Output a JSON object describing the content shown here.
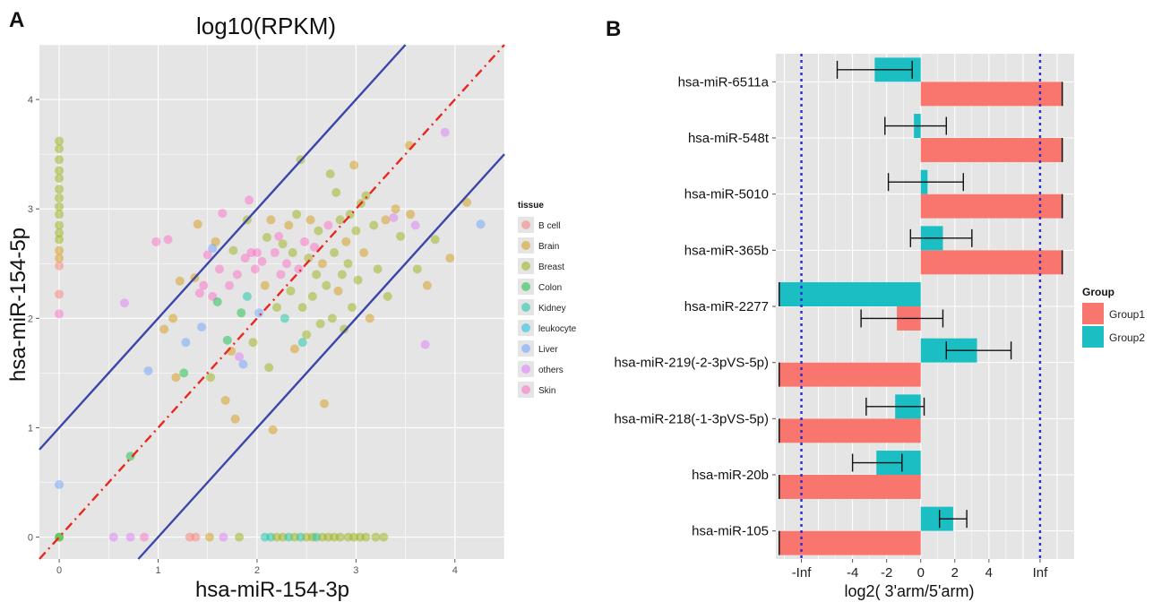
{
  "chart_data": [
    {
      "panel": "A",
      "type": "scatter",
      "title": "log10(RPKM)",
      "xlabel": "hsa-miR-154-3p",
      "ylabel": "hsa-miR-154-5p",
      "xlim": [
        -0.2,
        4.5
      ],
      "ylim": [
        -0.2,
        4.5
      ],
      "xticks": [
        "0",
        "1",
        "2",
        "3",
        "4"
      ],
      "yticks": [
        "0",
        "1",
        "2",
        "3",
        "4"
      ],
      "grid": true,
      "legend": {
        "title": "tissue",
        "placement": "right",
        "entries": [
          {
            "name": "B cell",
            "color": "#F8766D"
          },
          {
            "name": "Brain",
            "color": "#D39200"
          },
          {
            "name": "Breast",
            "color": "#93AA00"
          },
          {
            "name": "Colon",
            "color": "#00BA38"
          },
          {
            "name": "Kidney",
            "color": "#00C19F"
          },
          {
            "name": "leukocyte",
            "color": "#00B9E3"
          },
          {
            "name": "Liver",
            "color": "#619CFF"
          },
          {
            "name": "others",
            "color": "#DB72FB"
          },
          {
            "name": "Skin",
            "color": "#FF61C3"
          }
        ]
      },
      "reference_lines": [
        {
          "style": "dash-dot",
          "color": "#e8281e",
          "slope": 1,
          "intercept": 0
        },
        {
          "style": "solid",
          "color": "#3a46a8",
          "slope": 1,
          "intercept": 1
        },
        {
          "style": "solid",
          "color": "#3a46a8",
          "slope": 1,
          "intercept": -1
        }
      ],
      "points": [
        {
          "x": 0,
          "y": 3.62,
          "t": "Breast"
        },
        {
          "x": 0,
          "y": 3.55,
          "t": "Breast"
        },
        {
          "x": 0,
          "y": 3.45,
          "t": "Breast"
        },
        {
          "x": 0,
          "y": 3.35,
          "t": "Breast"
        },
        {
          "x": 0,
          "y": 3.28,
          "t": "Breast"
        },
        {
          "x": 0,
          "y": 3.18,
          "t": "Breast"
        },
        {
          "x": 0,
          "y": 3.1,
          "t": "Breast"
        },
        {
          "x": 0,
          "y": 3.02,
          "t": "Breast"
        },
        {
          "x": 0,
          "y": 2.95,
          "t": "Breast"
        },
        {
          "x": 0,
          "y": 2.85,
          "t": "Breast"
        },
        {
          "x": 0,
          "y": 2.78,
          "t": "Breast"
        },
        {
          "x": 0,
          "y": 2.72,
          "t": "Breast"
        },
        {
          "x": 0,
          "y": 2.62,
          "t": "Brain"
        },
        {
          "x": 0,
          "y": 2.55,
          "t": "Brain"
        },
        {
          "x": 0,
          "y": 2.48,
          "t": "B cell"
        },
        {
          "x": 0,
          "y": 2.22,
          "t": "B cell"
        },
        {
          "x": 0,
          "y": 2.04,
          "t": "Skin"
        },
        {
          "x": 0,
          "y": 0.48,
          "t": "Liver"
        },
        {
          "x": 0,
          "y": 0,
          "t": "Breast"
        },
        {
          "x": 0,
          "y": 0,
          "t": "Colon"
        },
        {
          "x": 0.72,
          "y": 0.74,
          "t": "Colon"
        },
        {
          "x": 0.55,
          "y": 0,
          "t": "others"
        },
        {
          "x": 0.72,
          "y": 0,
          "t": "others"
        },
        {
          "x": 0.86,
          "y": 0,
          "t": "Skin"
        },
        {
          "x": 1.32,
          "y": 0,
          "t": "B cell"
        },
        {
          "x": 1.38,
          "y": 0,
          "t": "B cell"
        },
        {
          "x": 1.52,
          "y": 0,
          "t": "Brain"
        },
        {
          "x": 1.66,
          "y": 0,
          "t": "others"
        },
        {
          "x": 1.82,
          "y": 0,
          "t": "Breast"
        },
        {
          "x": 2.08,
          "y": 0,
          "t": "Kidney"
        },
        {
          "x": 2.14,
          "y": 0,
          "t": "Kidney"
        },
        {
          "x": 2.2,
          "y": 0,
          "t": "Breast"
        },
        {
          "x": 2.26,
          "y": 0,
          "t": "Breast"
        },
        {
          "x": 2.32,
          "y": 0,
          "t": "Kidney"
        },
        {
          "x": 2.38,
          "y": 0,
          "t": "Breast"
        },
        {
          "x": 2.44,
          "y": 0,
          "t": "Kidney"
        },
        {
          "x": 2.5,
          "y": 0,
          "t": "Breast"
        },
        {
          "x": 2.56,
          "y": 0,
          "t": "Breast"
        },
        {
          "x": 2.6,
          "y": 0,
          "t": "Kidney"
        },
        {
          "x": 2.66,
          "y": 0,
          "t": "Breast"
        },
        {
          "x": 2.72,
          "y": 0,
          "t": "Breast"
        },
        {
          "x": 2.78,
          "y": 0,
          "t": "Breast"
        },
        {
          "x": 2.84,
          "y": 0,
          "t": "Breast"
        },
        {
          "x": 2.92,
          "y": 0,
          "t": "Breast"
        },
        {
          "x": 2.98,
          "y": 0,
          "t": "Breast"
        },
        {
          "x": 3.04,
          "y": 0,
          "t": "Breast"
        },
        {
          "x": 3.1,
          "y": 0,
          "t": "Breast"
        },
        {
          "x": 3.2,
          "y": 0,
          "t": "Breast"
        },
        {
          "x": 3.28,
          "y": 0,
          "t": "Breast"
        },
        {
          "x": 0.66,
          "y": 2.14,
          "t": "others"
        },
        {
          "x": 0.9,
          "y": 1.52,
          "t": "Liver"
        },
        {
          "x": 0.98,
          "y": 2.7,
          "t": "Skin"
        },
        {
          "x": 1.06,
          "y": 1.9,
          "t": "Brain"
        },
        {
          "x": 1.1,
          "y": 2.72,
          "t": "Skin"
        },
        {
          "x": 1.15,
          "y": 2.0,
          "t": "Brain"
        },
        {
          "x": 1.18,
          "y": 1.46,
          "t": "Brain"
        },
        {
          "x": 1.22,
          "y": 2.34,
          "t": "Brain"
        },
        {
          "x": 1.26,
          "y": 1.5,
          "t": "Colon"
        },
        {
          "x": 1.28,
          "y": 1.78,
          "t": "Liver"
        },
        {
          "x": 1.37,
          "y": 2.37,
          "t": "Brain"
        },
        {
          "x": 1.4,
          "y": 2.86,
          "t": "Brain"
        },
        {
          "x": 1.42,
          "y": 2.23,
          "t": "Skin"
        },
        {
          "x": 1.46,
          "y": 2.3,
          "t": "Skin"
        },
        {
          "x": 1.5,
          "y": 2.58,
          "t": "Skin"
        },
        {
          "x": 1.53,
          "y": 1.46,
          "t": "Breast"
        },
        {
          "x": 1.55,
          "y": 2.2,
          "t": "Skin"
        },
        {
          "x": 1.58,
          "y": 2.7,
          "t": "Brain"
        },
        {
          "x": 1.6,
          "y": 2.15,
          "t": "Colon"
        },
        {
          "x": 1.62,
          "y": 2.45,
          "t": "Skin"
        },
        {
          "x": 1.65,
          "y": 2.96,
          "t": "Skin"
        },
        {
          "x": 1.68,
          "y": 1.25,
          "t": "Brain"
        },
        {
          "x": 1.7,
          "y": 1.8,
          "t": "Colon"
        },
        {
          "x": 1.72,
          "y": 2.3,
          "t": "Skin"
        },
        {
          "x": 1.74,
          "y": 1.7,
          "t": "Brain"
        },
        {
          "x": 1.76,
          "y": 2.62,
          "t": "Breast"
        },
        {
          "x": 1.78,
          "y": 1.08,
          "t": "Brain"
        },
        {
          "x": 1.8,
          "y": 2.4,
          "t": "Skin"
        },
        {
          "x": 1.82,
          "y": 1.65,
          "t": "others"
        },
        {
          "x": 1.84,
          "y": 2.05,
          "t": "Colon"
        },
        {
          "x": 1.86,
          "y": 1.58,
          "t": "Liver"
        },
        {
          "x": 1.88,
          "y": 2.55,
          "t": "Skin"
        },
        {
          "x": 1.9,
          "y": 2.9,
          "t": "Breast"
        },
        {
          "x": 1.92,
          "y": 3.08,
          "t": "Skin"
        },
        {
          "x": 1.94,
          "y": 2.6,
          "t": "Skin"
        },
        {
          "x": 1.96,
          "y": 1.78,
          "t": "Breast"
        },
        {
          "x": 1.98,
          "y": 2.45,
          "t": "Skin"
        },
        {
          "x": 2.0,
          "y": 2.6,
          "t": "Skin"
        },
        {
          "x": 2.02,
          "y": 2.05,
          "t": "Liver"
        },
        {
          "x": 2.05,
          "y": 2.52,
          "t": "Skin"
        },
        {
          "x": 2.08,
          "y": 2.3,
          "t": "Brain"
        },
        {
          "x": 2.1,
          "y": 2.74,
          "t": "Breast"
        },
        {
          "x": 2.12,
          "y": 1.55,
          "t": "Breast"
        },
        {
          "x": 2.14,
          "y": 2.9,
          "t": "Brain"
        },
        {
          "x": 2.16,
          "y": 0.98,
          "t": "Brain"
        },
        {
          "x": 2.18,
          "y": 2.6,
          "t": "Skin"
        },
        {
          "x": 2.2,
          "y": 2.1,
          "t": "Breast"
        },
        {
          "x": 2.22,
          "y": 2.75,
          "t": "Skin"
        },
        {
          "x": 2.24,
          "y": 2.4,
          "t": "Skin"
        },
        {
          "x": 2.26,
          "y": 2.68,
          "t": "Breast"
        },
        {
          "x": 2.28,
          "y": 2.0,
          "t": "Kidney"
        },
        {
          "x": 2.3,
          "y": 2.5,
          "t": "Skin"
        },
        {
          "x": 2.32,
          "y": 2.85,
          "t": "Brain"
        },
        {
          "x": 2.34,
          "y": 2.25,
          "t": "Breast"
        },
        {
          "x": 2.36,
          "y": 2.6,
          "t": "Breast"
        },
        {
          "x": 2.38,
          "y": 1.72,
          "t": "Brain"
        },
        {
          "x": 2.4,
          "y": 2.95,
          "t": "Breast"
        },
        {
          "x": 2.42,
          "y": 2.45,
          "t": "Skin"
        },
        {
          "x": 2.44,
          "y": 3.45,
          "t": "Breast"
        },
        {
          "x": 2.46,
          "y": 2.1,
          "t": "Breast"
        },
        {
          "x": 2.48,
          "y": 2.7,
          "t": "Skin"
        },
        {
          "x": 2.5,
          "y": 1.85,
          "t": "Breast"
        },
        {
          "x": 2.52,
          "y": 2.55,
          "t": "Breast"
        },
        {
          "x": 2.54,
          "y": 2.9,
          "t": "Brain"
        },
        {
          "x": 2.56,
          "y": 2.2,
          "t": "Breast"
        },
        {
          "x": 2.58,
          "y": 2.65,
          "t": "Skin"
        },
        {
          "x": 2.6,
          "y": 2.4,
          "t": "Breast"
        },
        {
          "x": 2.62,
          "y": 2.8,
          "t": "Breast"
        },
        {
          "x": 2.64,
          "y": 1.95,
          "t": "Breast"
        },
        {
          "x": 2.66,
          "y": 2.5,
          "t": "Brain"
        },
        {
          "x": 2.68,
          "y": 1.22,
          "t": "Brain"
        },
        {
          "x": 2.7,
          "y": 2.3,
          "t": "Breast"
        },
        {
          "x": 2.72,
          "y": 2.85,
          "t": "Skin"
        },
        {
          "x": 2.74,
          "y": 3.32,
          "t": "Breast"
        },
        {
          "x": 2.76,
          "y": 2.0,
          "t": "Breast"
        },
        {
          "x": 2.78,
          "y": 2.6,
          "t": "Breast"
        },
        {
          "x": 2.8,
          "y": 3.15,
          "t": "Breast"
        },
        {
          "x": 2.82,
          "y": 2.25,
          "t": "Brain"
        },
        {
          "x": 2.84,
          "y": 2.9,
          "t": "Breast"
        },
        {
          "x": 2.86,
          "y": 2.4,
          "t": "Breast"
        },
        {
          "x": 2.88,
          "y": 1.9,
          "t": "Breast"
        },
        {
          "x": 2.9,
          "y": 2.7,
          "t": "Brain"
        },
        {
          "x": 2.92,
          "y": 2.5,
          "t": "Breast"
        },
        {
          "x": 2.94,
          "y": 2.95,
          "t": "Breast"
        },
        {
          "x": 2.96,
          "y": 2.1,
          "t": "Breast"
        },
        {
          "x": 2.98,
          "y": 3.4,
          "t": "Brain"
        },
        {
          "x": 3.0,
          "y": 2.8,
          "t": "Breast"
        },
        {
          "x": 3.02,
          "y": 2.35,
          "t": "Breast"
        },
        {
          "x": 3.05,
          "y": 3.05,
          "t": "Breast"
        },
        {
          "x": 3.08,
          "y": 2.6,
          "t": "Brain"
        },
        {
          "x": 3.1,
          "y": 3.12,
          "t": "Breast"
        },
        {
          "x": 3.14,
          "y": 2.0,
          "t": "Brain"
        },
        {
          "x": 3.18,
          "y": 2.85,
          "t": "Breast"
        },
        {
          "x": 3.22,
          "y": 2.45,
          "t": "Breast"
        },
        {
          "x": 3.3,
          "y": 2.9,
          "t": "Brain"
        },
        {
          "x": 3.32,
          "y": 2.2,
          "t": "Breast"
        },
        {
          "x": 3.4,
          "y": 3.0,
          "t": "Brain"
        },
        {
          "x": 3.45,
          "y": 2.75,
          "t": "Breast"
        },
        {
          "x": 3.55,
          "y": 2.95,
          "t": "Brain"
        },
        {
          "x": 3.62,
          "y": 2.45,
          "t": "Breast"
        },
        {
          "x": 3.72,
          "y": 2.3,
          "t": "Brain"
        },
        {
          "x": 3.8,
          "y": 2.72,
          "t": "Breast"
        },
        {
          "x": 3.38,
          "y": 2.92,
          "t": "others"
        },
        {
          "x": 3.6,
          "y": 2.85,
          "t": "others"
        },
        {
          "x": 3.7,
          "y": 1.76,
          "t": "others"
        },
        {
          "x": 3.9,
          "y": 3.7,
          "t": "others"
        },
        {
          "x": 3.54,
          "y": 3.58,
          "t": "Brain"
        },
        {
          "x": 3.95,
          "y": 2.55,
          "t": "Brain"
        },
        {
          "x": 4.12,
          "y": 3.06,
          "t": "Brain"
        },
        {
          "x": 4.26,
          "y": 2.86,
          "t": "Liver"
        },
        {
          "x": 1.44,
          "y": 1.92,
          "t": "Liver"
        },
        {
          "x": 1.55,
          "y": 2.64,
          "t": "Liver"
        },
        {
          "x": 1.9,
          "y": 2.2,
          "t": "Kidney"
        },
        {
          "x": 2.46,
          "y": 1.78,
          "t": "Kidney"
        }
      ]
    },
    {
      "panel": "B",
      "type": "bar",
      "orientation": "horizontal",
      "xlabel": "log2( 3'arm/5'arm)",
      "ylabel": "",
      "xticks": [
        "-Inf",
        "-4",
        "-2",
        "0",
        "2",
        "4",
        "Inf"
      ],
      "xlim": [
        -8.5,
        9
      ],
      "inf_positions": {
        "-Inf": -7,
        "Inf": 7
      },
      "grid": true,
      "legend": {
        "title": "Group",
        "placement": "right",
        "entries": [
          {
            "name": "Group1",
            "color": "#F8766D"
          },
          {
            "name": "Group2",
            "color": "#1BBFC3"
          }
        ]
      },
      "categories": [
        "hsa-miR-6511a",
        "hsa-miR-548t",
        "hsa-miR-5010",
        "hsa-miR-365b",
        "hsa-miR-2277",
        "hsa-miR-219(-2-3pVS-5p)",
        "hsa-miR-218(-1-3pVS-5p)",
        "hsa-miR-20b",
        "hsa-miR-105"
      ],
      "series": [
        {
          "name": "Group1",
          "values": [
            8.3,
            8.3,
            8.3,
            8.3,
            -1.4,
            -8.3,
            -8.3,
            -8.3,
            -8.3
          ],
          "err_low": [
            null,
            null,
            null,
            null,
            -3.5,
            null,
            null,
            null,
            null
          ],
          "err_high": [
            null,
            null,
            null,
            null,
            1.3,
            null,
            null,
            null,
            null
          ]
        },
        {
          "name": "Group2",
          "values": [
            -2.7,
            -0.4,
            0.4,
            1.3,
            -8.3,
            3.3,
            -1.5,
            -2.6,
            1.9
          ],
          "err_low": [
            -4.9,
            -2.1,
            -1.9,
            -0.6,
            null,
            1.5,
            -3.2,
            -4.0,
            1.1
          ],
          "err_high": [
            -0.5,
            1.5,
            2.5,
            3.0,
            null,
            5.3,
            0.2,
            -1.1,
            2.7
          ]
        }
      ]
    }
  ],
  "labels": {
    "panel_a": "A",
    "panel_b": "B"
  }
}
